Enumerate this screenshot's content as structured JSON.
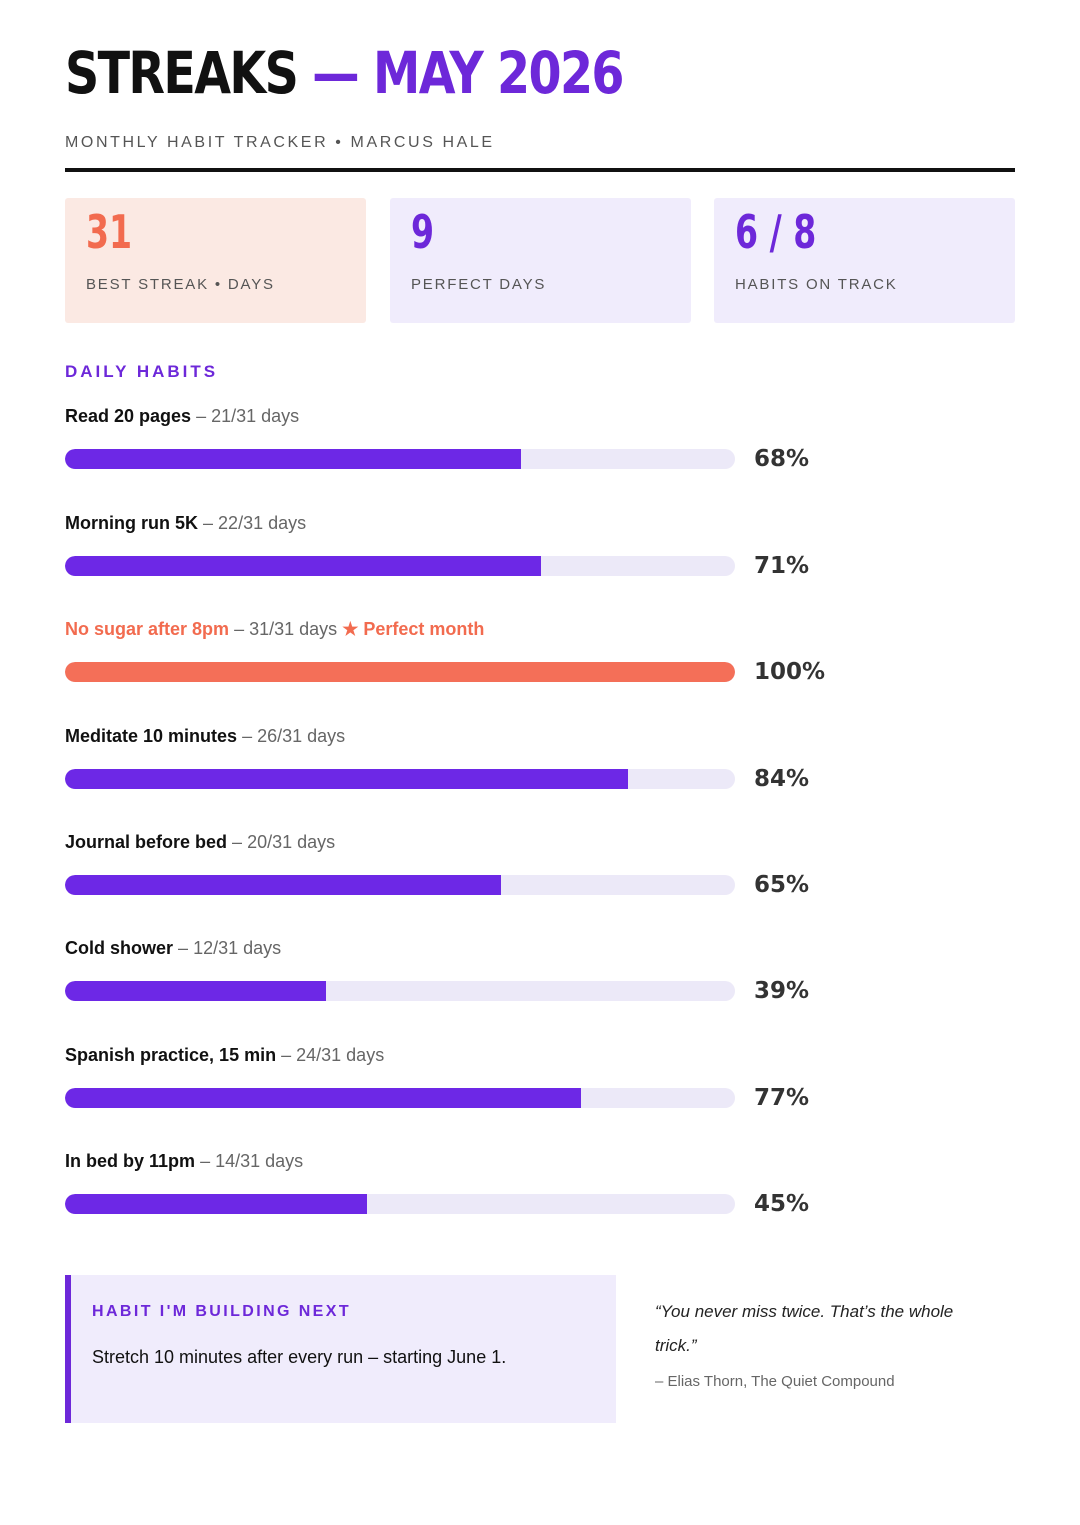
{
  "header": {
    "title_main": "STREAKS",
    "title_dash": "—",
    "title_month": "MAY 2026",
    "subtitle": "MONTHLY HABIT TRACKER • MARCUS HALE"
  },
  "stats": [
    {
      "value": "31",
      "label": "BEST STREAK • DAYS"
    },
    {
      "value": "9",
      "label": "PERFECT DAYS"
    },
    {
      "value": "6 / 8",
      "label": "HABITS ON TRACK"
    }
  ],
  "section_title": "DAILY HABITS",
  "habits": [
    {
      "name": "Read 20 pages",
      "sep": "–",
      "days": "21/31 days",
      "note": "",
      "percent_label": "68%",
      "percent": 68
    },
    {
      "name": "Morning run 5K",
      "sep": "–",
      "days": "22/31 days",
      "note": "",
      "percent_label": "71%",
      "percent": 71
    },
    {
      "name": "No sugar after 8pm",
      "sep": "–",
      "days": "31/31 days",
      "note": "★ Perfect month",
      "percent_label": "100%",
      "percent": 100
    },
    {
      "name": "Meditate 10 minutes",
      "sep": "–",
      "days": "26/31 days",
      "note": "",
      "percent_label": "84%",
      "percent": 84
    },
    {
      "name": "Journal before bed",
      "sep": "–",
      "days": "20/31 days",
      "note": "",
      "percent_label": "65%",
      "percent": 65
    },
    {
      "name": "Cold shower",
      "sep": "–",
      "days": "12/31 days",
      "note": "",
      "percent_label": "39%",
      "percent": 39
    },
    {
      "name": "Spanish practice, 15 min",
      "sep": "–",
      "days": "24/31 days",
      "note": "",
      "percent_label": "77%",
      "percent": 77
    },
    {
      "name": "In bed by 11pm",
      "sep": "–",
      "days": "14/31 days",
      "note": "",
      "percent_label": "45%",
      "percent": 45
    }
  ],
  "callout": {
    "title": "HABIT I'M BUILDING NEXT",
    "text": "Stretch 10 minutes after every run – starting June 1."
  },
  "quote": {
    "text": "“You never miss twice. That’s the whole trick.”",
    "attribution": "– Elias Thorn, The Quiet Compound"
  },
  "colors": {
    "accent": "#6d28d9",
    "bar": "#6d28e6",
    "highlight": "#f26b4f",
    "track": "#ece9f8"
  }
}
